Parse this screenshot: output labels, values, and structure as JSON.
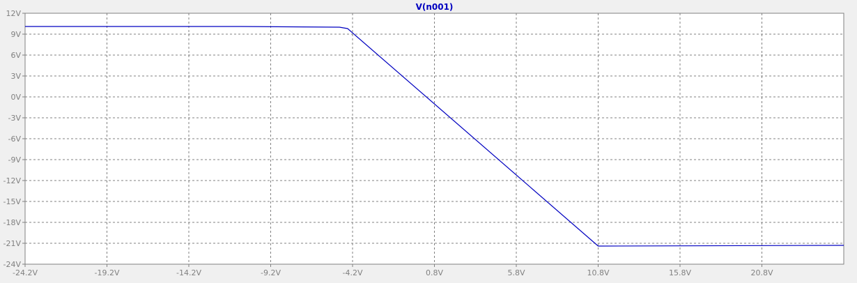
{
  "chart_data": {
    "type": "line",
    "title": "V(n001)",
    "xlabel": "",
    "ylabel": "",
    "xlim": [
      -24.2,
      25.8
    ],
    "ylim": [
      -24,
      12
    ],
    "x_ticks": [
      -24.2,
      -19.2,
      -14.2,
      -9.2,
      -4.2,
      0.8,
      5.8,
      10.8,
      15.8,
      20.8
    ],
    "x_tick_labels": [
      "-24.2V",
      "-19.2V",
      "-14.2V",
      "-9.2V",
      "-4.2V",
      "0.8V",
      "5.8V",
      "10.8V",
      "15.8V",
      "20.8V"
    ],
    "y_ticks": [
      12,
      9,
      6,
      3,
      0,
      -3,
      -6,
      -9,
      -12,
      -15,
      -18,
      -21,
      -24
    ],
    "y_tick_labels": [
      "12V",
      "9V",
      "6V",
      "3V",
      "0V",
      "-3V",
      "-6V",
      "-9V",
      "-12V",
      "-15V",
      "-18V",
      "-21V",
      "-24V"
    ],
    "grid": true,
    "series": [
      {
        "name": "V(n001)",
        "color": "#0000c0",
        "x": [
          -24.2,
          -11.0,
          -5.0,
          -4.5,
          10.8,
          11.0,
          25.8
        ],
        "y": [
          10.1,
          10.1,
          10.0,
          9.8,
          -21.4,
          -21.4,
          -21.3
        ]
      }
    ]
  }
}
